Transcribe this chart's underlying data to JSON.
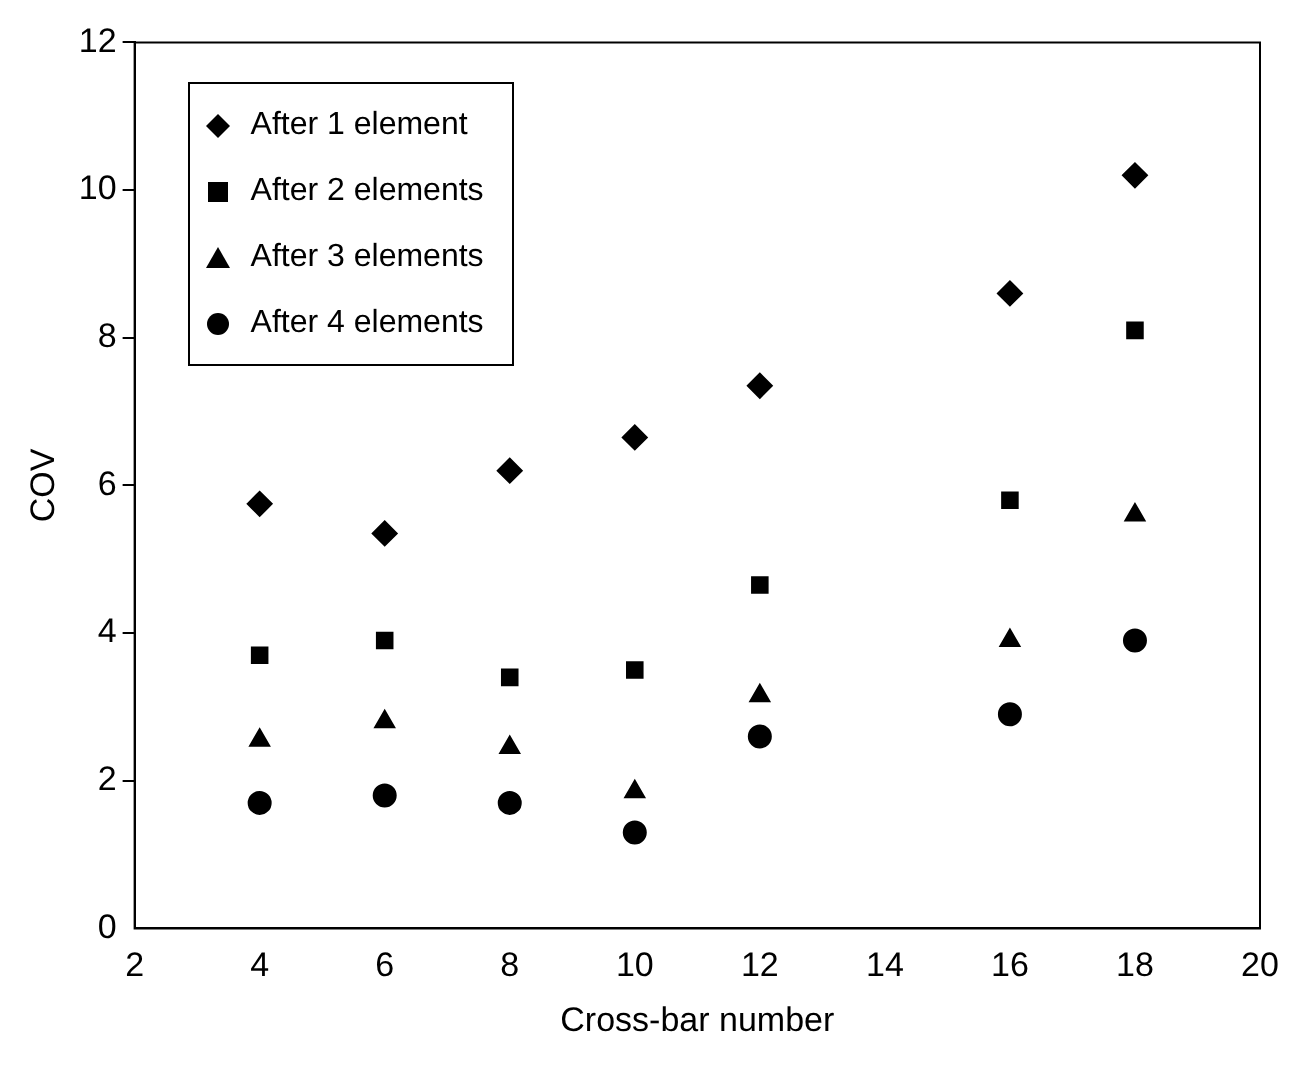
{
  "chart_data": {
    "type": "scatter",
    "xlabel": "Cross-bar number",
    "ylabel": "COV",
    "x": [
      4,
      6,
      8,
      10,
      12,
      16,
      18
    ],
    "series": [
      {
        "name": "After 1 element",
        "color": "#000000",
        "marker": "diamond",
        "values": [
          5.75,
          5.35,
          6.2,
          6.65,
          7.35,
          8.6,
          10.2
        ]
      },
      {
        "name": "After 2 elements",
        "color": "#000000",
        "marker": "square",
        "values": [
          3.7,
          3.9,
          3.4,
          3.5,
          4.65,
          5.8,
          8.1
        ]
      },
      {
        "name": "After 3 elements",
        "color": "#000000",
        "marker": "triangle",
        "values": [
          2.55,
          2.8,
          2.45,
          1.85,
          3.15,
          3.9,
          5.6
        ]
      },
      {
        "name": "After 4 elements",
        "color": "#000000",
        "marker": "circle",
        "values": [
          1.7,
          1.8,
          1.7,
          1.3,
          2.6,
          2.9,
          3.9
        ]
      }
    ],
    "xlim": [
      2,
      20
    ],
    "xticks": [
      2,
      4,
      6,
      8,
      10,
      12,
      14,
      16,
      18,
      20
    ],
    "ylim": [
      0,
      12
    ],
    "yticks": [
      0,
      2,
      4,
      6,
      8,
      10,
      12
    ],
    "grid": false,
    "legend": "top left"
  }
}
